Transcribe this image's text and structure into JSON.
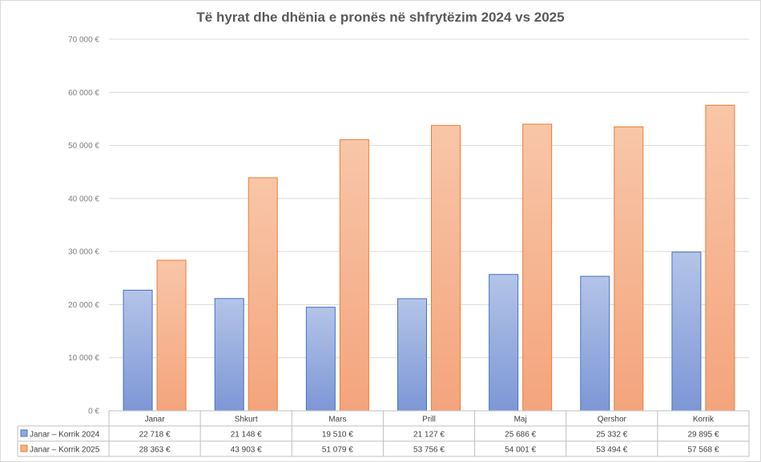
{
  "chart_data": {
    "type": "bar",
    "title": "Të hyrat dhe dhënia e pronës në shfrytëzim 2024 vs 2025",
    "categories": [
      "Janar",
      "Shkurt",
      "Mars",
      "Prill",
      "Maj",
      "Qershor",
      "Korrik"
    ],
    "series": [
      {
        "name": "Janar – Korrik 2024",
        "values": [
          22718,
          21148,
          19510,
          21127,
          25686,
          25332,
          29895
        ],
        "labels": [
          "22 718 €",
          "21 148 €",
          "19 510 €",
          "21 127 €",
          "25 686 €",
          "25 332 €",
          "29 895 €"
        ],
        "color": "#8faadc",
        "stroke": "#4472c4"
      },
      {
        "name": "Janar – Korrik 2025",
        "values": [
          28363,
          43903,
          51079,
          53756,
          54001,
          53494,
          57568
        ],
        "labels": [
          "28 363 €",
          "43 903 €",
          "51 079 €",
          "53 756 €",
          "54 001 €",
          "53 494 €",
          "57 568 €"
        ],
        "color": "#f4b183",
        "stroke": "#ed7d31"
      }
    ],
    "ylim": [
      0,
      70000
    ],
    "yticks": [
      0,
      10000,
      20000,
      30000,
      40000,
      50000,
      60000,
      70000
    ],
    "ytick_labels": [
      "0 €",
      "10 000 €",
      "20 000 €",
      "30 000 €",
      "40 000 €",
      "50 000 €",
      "60 000 €",
      "70 000 €"
    ],
    "grid": true,
    "legend": "data-table"
  }
}
